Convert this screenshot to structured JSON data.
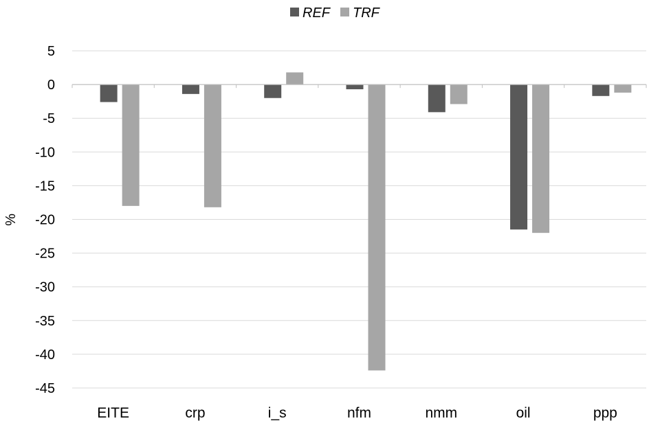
{
  "chart_data": {
    "type": "bar",
    "title": "",
    "xlabel": "",
    "ylabel": "%",
    "categories": [
      "EITE",
      "crp",
      "i_s",
      "nfm",
      "nmm",
      "oil",
      "ppp"
    ],
    "series": [
      {
        "name": "REF",
        "color": "#595959",
        "values": [
          -2.6,
          -1.4,
          -2.0,
          -0.7,
          -4.1,
          -21.5,
          -1.7
        ]
      },
      {
        "name": "TRF",
        "color": "#a6a6a6",
        "values": [
          -18.0,
          -18.2,
          1.8,
          -42.4,
          -2.9,
          -22.0,
          -1.2
        ]
      }
    ],
    "ylim": [
      -45,
      5
    ],
    "yticks": [
      5,
      0,
      -5,
      -10,
      -15,
      -20,
      -25,
      -30,
      -35,
      -40,
      -45
    ],
    "grid": true,
    "legend": "top-center"
  }
}
